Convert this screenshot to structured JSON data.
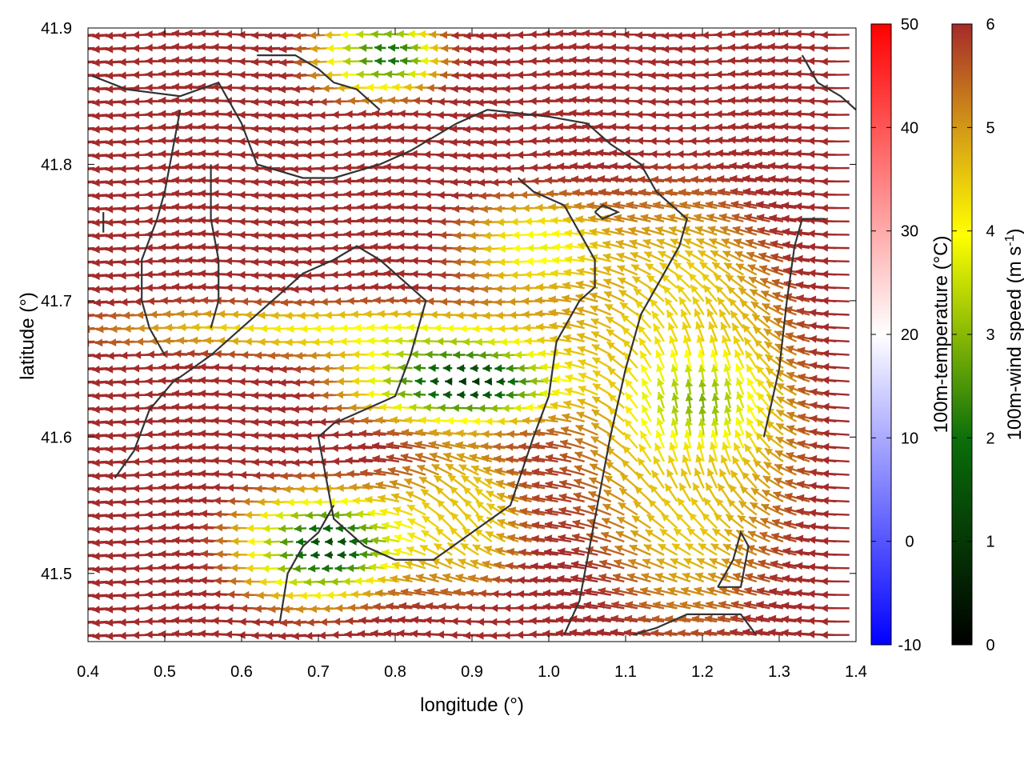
{
  "chart_data": {
    "type": "vector-field",
    "xlabel": "longitude (°)",
    "ylabel": "latitude (°)",
    "xlim": [
      0.4,
      1.4
    ],
    "ylim": [
      41.45,
      41.9
    ],
    "x_ticks": [
      "0.4",
      "0.5",
      "0.6",
      "0.7",
      "0.8",
      "0.9",
      "1.0",
      "1.1",
      "1.2",
      "1.3",
      "1.4"
    ],
    "y_ticks": [
      "41.5",
      "41.6",
      "41.7",
      "41.8",
      "41.9"
    ],
    "grid": false,
    "background_field": {
      "name": "100m-temperature (°C)",
      "range": [
        -10,
        50
      ],
      "ticks": [
        "-10",
        "0",
        "10",
        "20",
        "30",
        "40",
        "50"
      ],
      "colors": [
        "#0000ff",
        "#ffffff",
        "#ff0000"
      ]
    },
    "vector_color": {
      "name_main": "100m-wind speed (m s",
      "name_exp": "-1",
      "name_tail": ")",
      "range": [
        0,
        6
      ],
      "ticks": [
        "0",
        "1",
        "2",
        "3",
        "4",
        "5",
        "6"
      ],
      "colors": [
        "#000000",
        "#0a6e0a",
        "#ffff00",
        "#d49a16",
        "#a52a2a"
      ]
    },
    "coastline": [
      [
        [
          0.405,
          41.865
        ],
        [
          0.45,
          41.855
        ],
        [
          0.52,
          41.85
        ],
        [
          0.57,
          41.86
        ],
        [
          0.6,
          41.83
        ],
        [
          0.62,
          41.8
        ],
        [
          0.68,
          41.79
        ],
        [
          0.72,
          41.79
        ],
        [
          0.78,
          41.8
        ],
        [
          0.82,
          41.81
        ],
        [
          0.85,
          41.82
        ],
        [
          0.88,
          41.83
        ],
        [
          0.92,
          41.84
        ],
        [
          1.0,
          41.835
        ],
        [
          1.05,
          41.83
        ],
        [
          1.08,
          41.815
        ],
        [
          1.12,
          41.8
        ],
        [
          1.14,
          41.78
        ],
        [
          1.16,
          41.77
        ],
        [
          1.18,
          41.76
        ],
        [
          1.17,
          41.74
        ],
        [
          1.15,
          41.72
        ],
        [
          1.12,
          41.69
        ],
        [
          1.1,
          41.65
        ],
        [
          1.08,
          41.6
        ],
        [
          1.07,
          41.57
        ],
        [
          1.06,
          41.54
        ],
        [
          1.05,
          41.51
        ],
        [
          1.04,
          41.48
        ],
        [
          1.02,
          41.455
        ]
      ],
      [
        [
          0.42,
          41.765
        ],
        [
          0.42,
          41.75
        ]
      ],
      [
        [
          0.435,
          41.57
        ],
        [
          0.46,
          41.59
        ],
        [
          0.48,
          41.62
        ],
        [
          0.51,
          41.64
        ],
        [
          0.56,
          41.66
        ],
        [
          0.6,
          41.68
        ],
        [
          0.64,
          41.7
        ],
        [
          0.68,
          41.72
        ],
        [
          0.72,
          41.73
        ],
        [
          0.75,
          41.74
        ],
        [
          0.78,
          41.73
        ],
        [
          0.8,
          41.72
        ],
        [
          0.82,
          41.71
        ],
        [
          0.84,
          41.7
        ],
        [
          0.82,
          41.66
        ],
        [
          0.8,
          41.63
        ],
        [
          0.76,
          41.62
        ],
        [
          0.72,
          41.61
        ],
        [
          0.7,
          41.6
        ],
        [
          0.71,
          41.57
        ],
        [
          0.72,
          41.54
        ],
        [
          0.76,
          41.52
        ],
        [
          0.8,
          41.51
        ],
        [
          0.85,
          41.51
        ],
        [
          0.9,
          41.53
        ],
        [
          0.95,
          41.55
        ],
        [
          0.98,
          41.6
        ],
        [
          1.0,
          41.63
        ],
        [
          1.01,
          41.67
        ],
        [
          1.04,
          41.7
        ],
        [
          1.06,
          41.71
        ],
        [
          1.06,
          41.73
        ],
        [
          1.04,
          41.75
        ],
        [
          1.02,
          41.77
        ],
        [
          0.98,
          41.78
        ],
        [
          0.96,
          41.79
        ]
      ],
      [
        [
          0.5,
          41.66
        ],
        [
          0.48,
          41.68
        ],
        [
          0.47,
          41.7
        ],
        [
          0.47,
          41.73
        ],
        [
          0.49,
          41.76
        ],
        [
          0.5,
          41.78
        ],
        [
          0.51,
          41.81
        ],
        [
          0.52,
          41.84
        ]
      ],
      [
        [
          0.56,
          41.68
        ],
        [
          0.57,
          41.7
        ],
        [
          0.57,
          41.73
        ],
        [
          0.56,
          41.76
        ],
        [
          0.56,
          41.8
        ]
      ],
      [
        [
          1.28,
          41.6
        ],
        [
          1.3,
          41.65
        ],
        [
          1.31,
          41.7
        ],
        [
          1.32,
          41.74
        ],
        [
          1.33,
          41.76
        ],
        [
          1.36,
          41.76
        ]
      ],
      [
        [
          1.22,
          41.49
        ],
        [
          1.24,
          41.51
        ],
        [
          1.25,
          41.53
        ],
        [
          1.26,
          41.52
        ],
        [
          1.25,
          41.49
        ],
        [
          1.22,
          41.49
        ]
      ],
      [
        [
          1.11,
          41.455
        ],
        [
          1.14,
          41.46
        ],
        [
          1.18,
          41.47
        ],
        [
          1.22,
          41.47
        ],
        [
          1.25,
          41.47
        ],
        [
          1.27,
          41.455
        ]
      ],
      [
        [
          0.65,
          41.465
        ],
        [
          0.66,
          41.5
        ],
        [
          0.68,
          41.52
        ],
        [
          0.7,
          41.53
        ],
        [
          0.72,
          41.55
        ]
      ],
      [
        [
          1.06,
          41.765
        ],
        [
          1.07,
          41.77
        ],
        [
          1.09,
          41.765
        ],
        [
          1.07,
          41.76
        ],
        [
          1.06,
          41.765
        ]
      ],
      [
        [
          0.62,
          41.88
        ],
        [
          0.67,
          41.88
        ],
        [
          0.7,
          41.87
        ],
        [
          0.72,
          41.86
        ],
        [
          0.75,
          41.855
        ],
        [
          0.78,
          41.84
        ]
      ],
      [
        [
          1.33,
          41.88
        ],
        [
          1.35,
          41.86
        ],
        [
          1.38,
          41.85
        ],
        [
          1.4,
          41.84
        ]
      ]
    ]
  }
}
